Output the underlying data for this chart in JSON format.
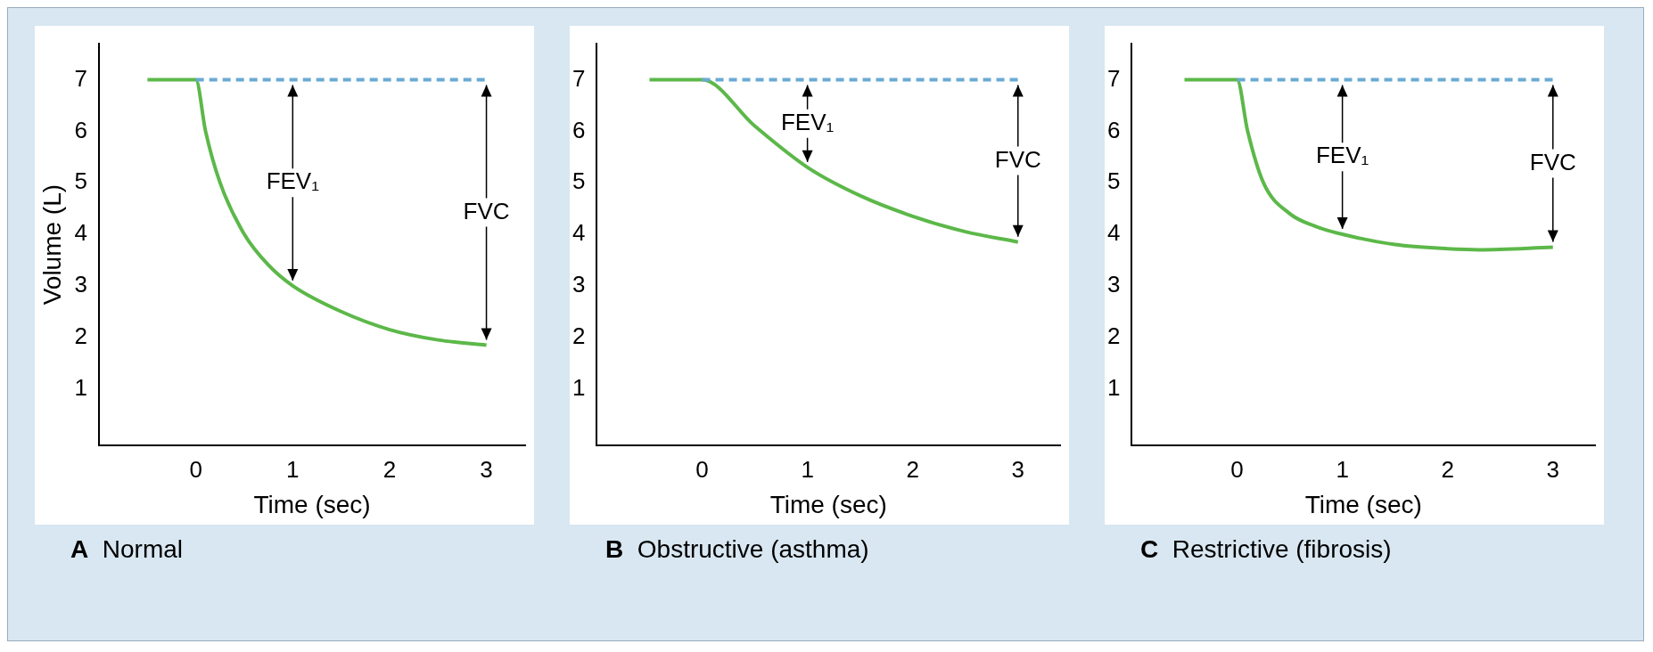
{
  "chart_data": [
    {
      "type": "line",
      "title": "A Normal",
      "xlabel": "Time (sec)",
      "ylabel": "Volume (L)",
      "xlim": [
        -1,
        3.4
      ],
      "ylim": [
        -0.1,
        7.7
      ],
      "xticks": [
        0,
        1,
        2,
        3
      ],
      "yticks": [
        1,
        2,
        3,
        4,
        5,
        6,
        7
      ],
      "grid": false,
      "legend": false,
      "marker": "none",
      "series": [
        {
          "color": "#5cb849",
          "x": [
            -0.5,
            0,
            0.1,
            0.25,
            0.5,
            0.75,
            1,
            1.5,
            2,
            2.5,
            3
          ],
          "values": [
            7,
            7,
            6,
            5,
            4,
            3.4,
            3,
            2.5,
            2.15,
            1.95,
            1.85
          ]
        },
        {
          "color": "#6aaad4",
          "line_style": "dashed",
          "x": [
            0,
            3
          ],
          "values": [
            7,
            7
          ]
        }
      ],
      "annotations": [
        "FEV₁",
        "FVC"
      ]
    },
    {
      "type": "line",
      "title": "B Obstructive (asthma)",
      "xlabel": "Time (sec)",
      "xlim": [
        -1,
        3.4
      ],
      "ylim": [
        -0.1,
        7.7
      ],
      "xticks": [
        0,
        1,
        2,
        3
      ],
      "yticks": [
        1,
        2,
        3,
        4,
        5,
        6,
        7
      ],
      "grid": false,
      "legend": false,
      "marker": "none",
      "series": [
        {
          "color": "#5cb849",
          "x": [
            -0.5,
            0,
            0.5,
            1,
            1.5,
            2,
            2.5,
            3
          ],
          "values": [
            7,
            7,
            6.1,
            5.3,
            4.75,
            4.35,
            4.05,
            3.85
          ]
        },
        {
          "color": "#6aaad4",
          "line_style": "dashed",
          "x": [
            0,
            3
          ],
          "values": [
            7,
            7
          ]
        }
      ],
      "annotations": [
        "FEV₁",
        "FVC"
      ]
    },
    {
      "type": "line",
      "title": "C Restrictive (fibrosis)",
      "xlabel": "Time (sec)",
      "xlim": [
        -1,
        3.4
      ],
      "ylim": [
        -0.1,
        7.7
      ],
      "xticks": [
        0,
        1,
        2,
        3
      ],
      "yticks": [
        1,
        2,
        3,
        4,
        5,
        6,
        7
      ],
      "grid": false,
      "legend": false,
      "marker": "none",
      "series": [
        {
          "color": "#5cb849",
          "x": [
            -0.5,
            0,
            0.1,
            0.25,
            0.5,
            0.75,
            1,
            1.5,
            2,
            2.3,
            3
          ],
          "values": [
            7,
            7,
            6,
            5,
            4.4,
            4.15,
            4,
            3.8,
            3.72,
            3.7,
            3.75
          ]
        },
        {
          "color": "#6aaad4",
          "line_style": "dashed",
          "x": [
            0,
            3
          ],
          "values": [
            7,
            7
          ]
        }
      ],
      "annotations": [
        "FEV₁",
        "FVC"
      ]
    }
  ]
}
